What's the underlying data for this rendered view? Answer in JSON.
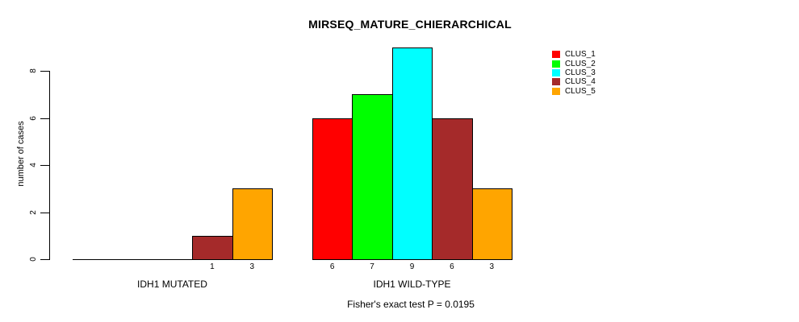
{
  "chart_data": {
    "type": "bar",
    "title": "MIRSEQ_MATURE_CHIERARCHICAL",
    "xlabel": "",
    "ylabel": "number of cases",
    "annotation": "Fisher's exact test P = 0.0195",
    "categories": [
      "IDH1 MUTATED",
      "IDH1 WILD-TYPE"
    ],
    "series": [
      {
        "name": "CLUS_1",
        "color": "#FF0000",
        "values": [
          0,
          6
        ]
      },
      {
        "name": "CLUS_2",
        "color": "#00FF00",
        "values": [
          0,
          7
        ]
      },
      {
        "name": "CLUS_3",
        "color": "#00FFFF",
        "values": [
          0,
          9
        ]
      },
      {
        "name": "CLUS_4",
        "color": "#A52A2A",
        "values": [
          1,
          6
        ]
      },
      {
        "name": "CLUS_5",
        "color": "#FFA500",
        "values": [
          3,
          3
        ]
      }
    ],
    "bar_value_labels": [
      [
        "",
        "",
        "",
        "1",
        "3"
      ],
      [
        "6",
        "7",
        "9",
        "6",
        "3"
      ]
    ],
    "ylim": [
      0,
      9
    ],
    "yticks": [
      0,
      2,
      4,
      6,
      8
    ],
    "grid": false,
    "legend_position": "top-right",
    "bar_border_color": "#000000"
  }
}
